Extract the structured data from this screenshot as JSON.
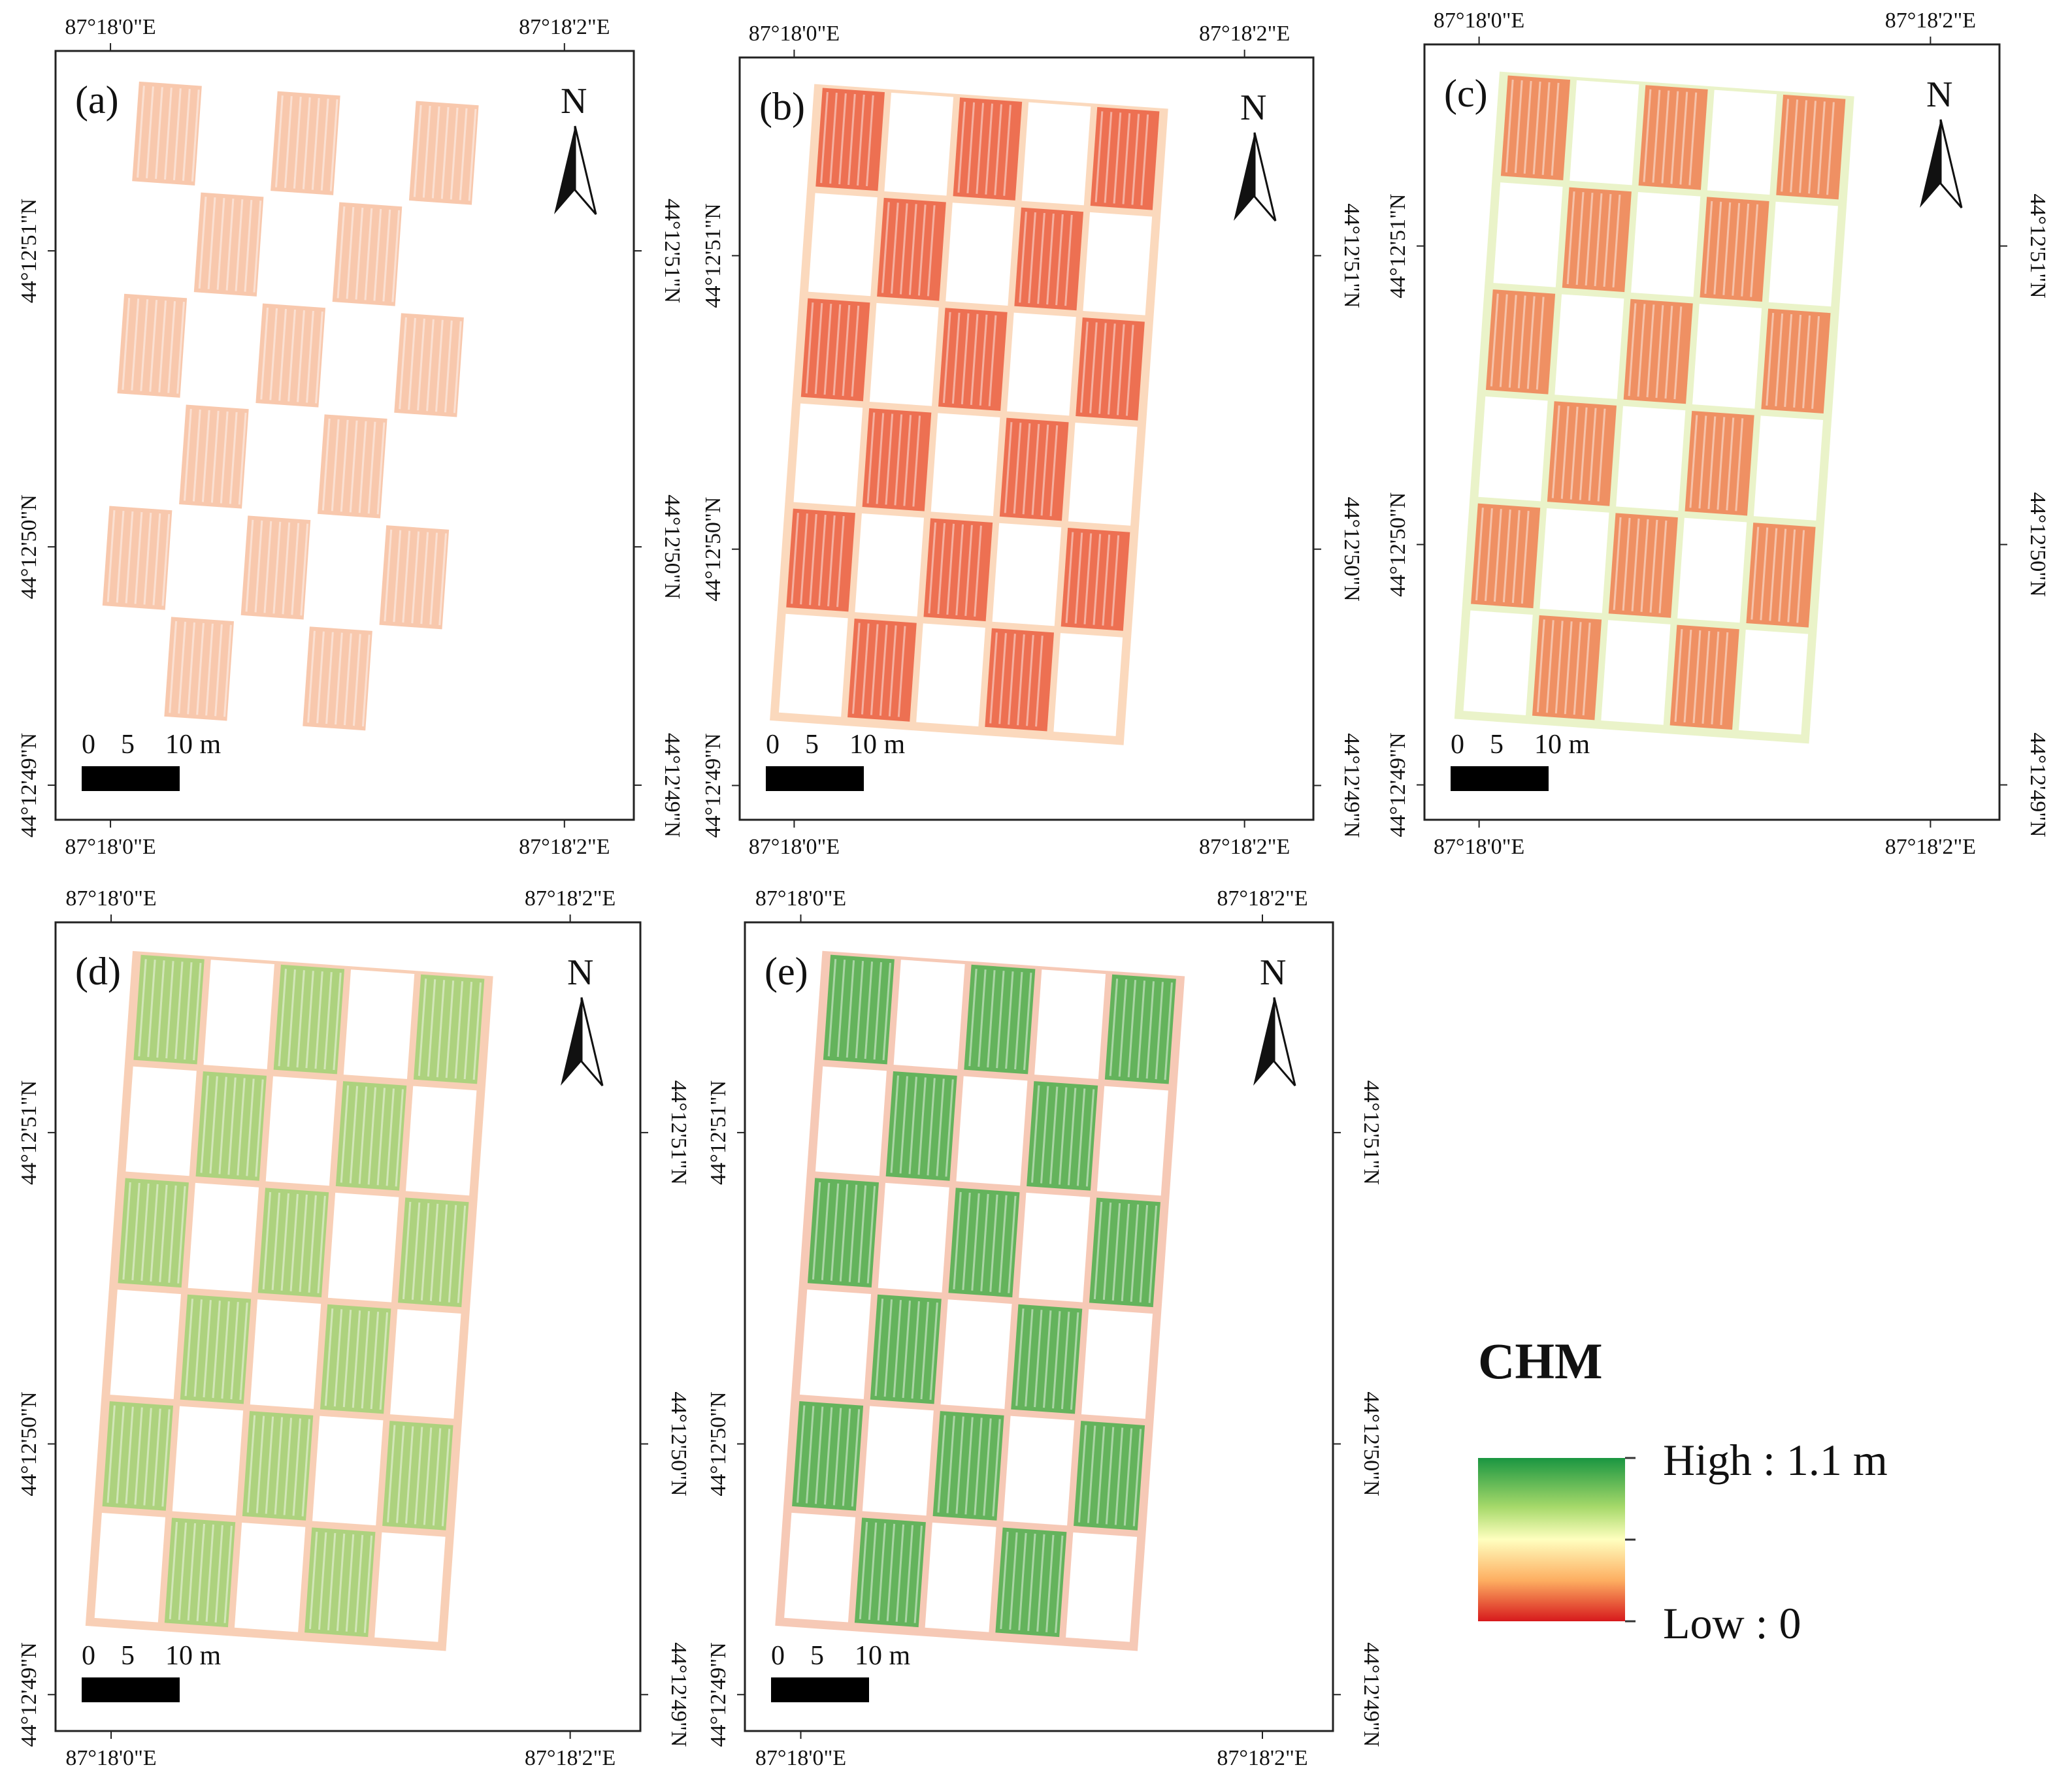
{
  "figure": {
    "panels": [
      {
        "id": "a",
        "label": "(a)",
        "lon_labels": [
          "87°18'0\"E",
          "87°18'2\"E"
        ],
        "lat_labels": [
          "44°12'51\"N",
          "44°12'50\"N",
          "44°12'49\"N"
        ],
        "scale_labels": [
          "0",
          "5",
          "10 m"
        ],
        "north_label": "N",
        "palette": [
          "#f29a6a",
          "#ed8059"
        ],
        "field_density": 0.55
      },
      {
        "id": "b",
        "label": "(b)",
        "lon_labels": [
          "87°18'0\"E",
          "87°18'2\"E"
        ],
        "lat_labels": [
          "44°12'51\"N",
          "44°12'50\"N",
          "44°12'49\"N"
        ],
        "scale_labels": [
          "0",
          "5",
          "10 m"
        ],
        "north_label": "N",
        "palette": [
          "#ec6a4c",
          "#f8b987"
        ],
        "field_density": 0.95
      },
      {
        "id": "c",
        "label": "(c)",
        "lon_labels": [
          "87°18'0\"E",
          "87°18'2\"E"
        ],
        "lat_labels": [
          "44°12'51\"N",
          "44°12'50\"N",
          "44°12'49\"N"
        ],
        "scale_labels": [
          "0",
          "5",
          "10 m"
        ],
        "north_label": "N",
        "palette": [
          "#ef8a5e",
          "#d9ea9c"
        ],
        "field_density": 0.95
      },
      {
        "id": "d",
        "label": "(d)",
        "lon_labels": [
          "87°18'0\"E",
          "87°18'2\"E"
        ],
        "lat_labels": [
          "44°12'51\"N",
          "44°12'50\"N",
          "44°12'49\"N"
        ],
        "scale_labels": [
          "0",
          "5",
          "10 m"
        ],
        "north_label": "N",
        "palette": [
          "#a9d27b",
          "#f2a77a"
        ],
        "field_density": 0.95
      },
      {
        "id": "e",
        "label": "(e)",
        "lon_labels": [
          "87°18'0\"E",
          "87°18'2\"E"
        ],
        "lat_labels": [
          "44°12'51\"N",
          "44°12'50\"N",
          "44°12'49\"N"
        ],
        "scale_labels": [
          "0",
          "5",
          "10 m"
        ],
        "north_label": "N",
        "palette": [
          "#5cb257",
          "#ef9d7a"
        ],
        "field_density": 0.95
      }
    ],
    "legend": {
      "title": "CHM",
      "high_label": "High : 1.1 m",
      "low_label": "Low : 0",
      "colors": [
        "#1a9641",
        "#a6d96a",
        "#ffffbf",
        "#fdae61",
        "#d7191c"
      ]
    }
  }
}
